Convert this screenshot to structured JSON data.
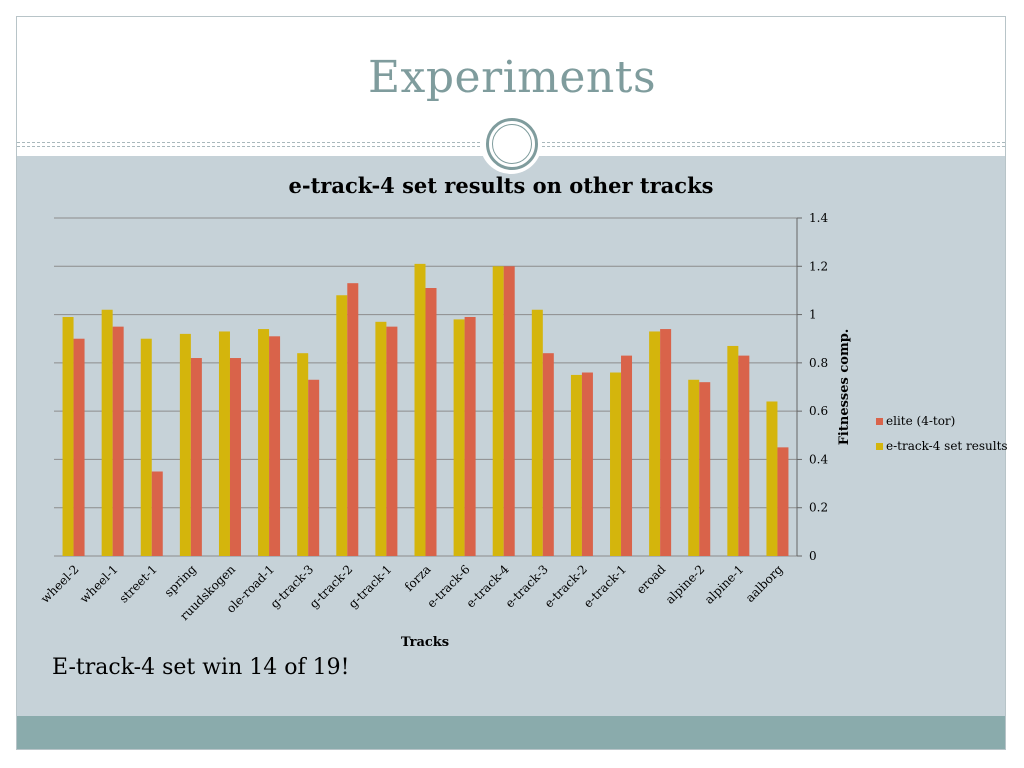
{
  "slide": {
    "title": "Experiments",
    "caption": "E-track-4 set win 14 of 19!"
  },
  "colors": {
    "title": "#7f9c9d",
    "background": "#c6d2d8",
    "footer_band": "#8aabac",
    "series_elite": "#d9634a",
    "series_etrack4": "#d4b50c",
    "gridline": "#8c8c8c"
  },
  "chart_data": {
    "type": "bar",
    "title": "e-track-4 set results on other tracks",
    "xlabel": "Tracks",
    "ylabel": "Fitnesses comp.",
    "ylim": [
      0,
      1.4
    ],
    "yticks": [
      0,
      0.2,
      0.4,
      0.6,
      0.8,
      1,
      1.2,
      1.4
    ],
    "ytick_labels": [
      "0",
      "0.2",
      "0.4",
      "0.6",
      "0.8",
      "1",
      "1.2",
      "1.4"
    ],
    "y_axis_side": "right",
    "grid": true,
    "legend_position": "right",
    "categories": [
      "wheel-2",
      "wheel-1",
      "street-1",
      "spring",
      "ruudskogen",
      "ole-road-1",
      "g-track-3",
      "g-track-2",
      "g-track-1",
      "forza",
      "e-track-6",
      "e-track-4",
      "e-track-3",
      "e-track-2",
      "e-track-1",
      "eroad",
      "alpine-2",
      "alpine-1",
      "aalborg"
    ],
    "series": [
      {
        "name": "e-track-4 set results",
        "color": "#d4b50c",
        "values": [
          0.99,
          1.02,
          0.9,
          0.92,
          0.93,
          0.94,
          0.84,
          1.08,
          0.97,
          1.21,
          0.98,
          1.2,
          1.02,
          0.75,
          0.76,
          0.93,
          0.73,
          0.87,
          0.64
        ]
      },
      {
        "name": "elite (4-tor)",
        "color": "#d9634a",
        "values": [
          0.9,
          0.95,
          0.35,
          0.82,
          0.82,
          0.91,
          0.73,
          1.13,
          0.95,
          1.11,
          0.99,
          1.2,
          0.84,
          0.76,
          0.83,
          0.94,
          0.72,
          0.83,
          0.45
        ]
      }
    ],
    "legend": [
      {
        "name": "elite (4-tor)",
        "color": "#d9634a"
      },
      {
        "name": "e-track-4 set results",
        "color": "#d4b50c"
      }
    ]
  }
}
